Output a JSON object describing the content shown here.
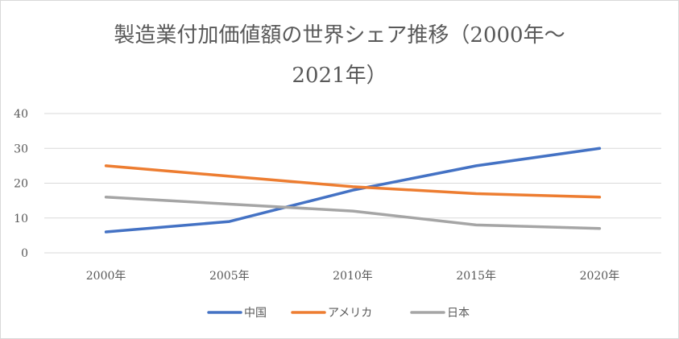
{
  "chart_data": {
    "type": "line",
    "title": "製造業付加価値額の世界シェア推移（2000年〜2021年）",
    "title_lines": [
      "製造業付加価値額の世界シェア推移（2000年〜",
      "2021年）"
    ],
    "xlabel": "",
    "ylabel": "",
    "categories": [
      "2000年",
      "2005年",
      "2010年",
      "2015年",
      "2020年"
    ],
    "ylim": [
      0,
      40
    ],
    "yticks": [
      0,
      10,
      20,
      30,
      40
    ],
    "grid": true,
    "legend_position": "bottom",
    "series": [
      {
        "name": "中国",
        "color": "#4472c4",
        "values": [
          6,
          9,
          18,
          25,
          30
        ]
      },
      {
        "name": "アメリカ",
        "color": "#ed7d31",
        "values": [
          25,
          22,
          19,
          17,
          16
        ]
      },
      {
        "name": "日本",
        "color": "#a5a5a5",
        "values": [
          16,
          14,
          12,
          8,
          7
        ]
      }
    ]
  }
}
